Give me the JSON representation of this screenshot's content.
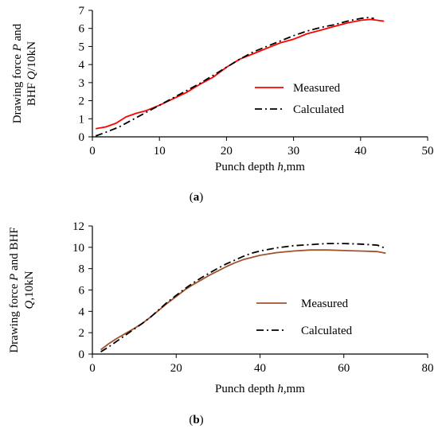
{
  "chart_data": [
    {
      "panel_label": "(a)",
      "type": "line",
      "title": "",
      "xlabel": "Punch depth h,mm",
      "ylabel_line1": "Drawing force P and",
      "ylabel_line2": "BHF Q/10kN",
      "xlim": [
        0,
        50
      ],
      "ylim": [
        0,
        7
      ],
      "xticks": [
        0,
        10,
        20,
        30,
        40,
        50
      ],
      "yticks": [
        0,
        1,
        2,
        3,
        4,
        5,
        6,
        7
      ],
      "grid": false,
      "legend_position": "center-right",
      "series": [
        {
          "name": "Measured",
          "color": "#ff0000",
          "style": "solid",
          "x": [
            0.5,
            2,
            3.5,
            5,
            6.5,
            8,
            10,
            12,
            14,
            16,
            18,
            20,
            22,
            24,
            26,
            28,
            30,
            32,
            34,
            36,
            38,
            40,
            41.5,
            42.5,
            43.5
          ],
          "y": [
            0.45,
            0.55,
            0.75,
            1.1,
            1.3,
            1.45,
            1.75,
            2.1,
            2.45,
            2.9,
            3.3,
            3.85,
            4.3,
            4.6,
            4.9,
            5.2,
            5.4,
            5.7,
            5.9,
            6.1,
            6.3,
            6.45,
            6.5,
            6.45,
            6.4
          ]
        },
        {
          "name": "Calculated",
          "color": "#000000",
          "style": "dashdot",
          "x": [
            0.5,
            2,
            4,
            6,
            8,
            10,
            12,
            14,
            16,
            18,
            20,
            22,
            24,
            26,
            28,
            30,
            32,
            34,
            36,
            38,
            40,
            41,
            42
          ],
          "y": [
            0.05,
            0.25,
            0.55,
            0.95,
            1.35,
            1.75,
            2.15,
            2.55,
            2.95,
            3.4,
            3.85,
            4.3,
            4.7,
            5.0,
            5.3,
            5.6,
            5.85,
            6.05,
            6.2,
            6.4,
            6.55,
            6.6,
            6.55
          ]
        }
      ]
    },
    {
      "panel_label": "(b)",
      "type": "line",
      "title": "",
      "xlabel": "Punch depth h,mm",
      "ylabel_line1": "Drawing force P and BHF",
      "ylabel_line2": "Q,10kN",
      "xlim": [
        0,
        80
      ],
      "ylim": [
        0,
        12
      ],
      "xticks": [
        0,
        20,
        40,
        60,
        80
      ],
      "yticks": [
        0,
        2,
        4,
        6,
        8,
        10,
        12
      ],
      "grid": false,
      "legend_position": "bottom-right",
      "series": [
        {
          "name": "Measured",
          "color": "#a0522d",
          "style": "solid",
          "x": [
            2,
            4,
            6,
            8,
            10,
            12,
            14,
            16,
            18,
            20,
            22,
            24,
            26,
            28,
            30,
            32,
            34,
            36,
            38,
            40,
            44,
            48,
            52,
            56,
            60,
            64,
            68,
            70
          ],
          "y": [
            0.4,
            1.0,
            1.5,
            1.95,
            2.4,
            2.9,
            3.5,
            4.15,
            4.8,
            5.4,
            6.0,
            6.5,
            6.95,
            7.4,
            7.8,
            8.2,
            8.55,
            8.85,
            9.05,
            9.25,
            9.5,
            9.65,
            9.75,
            9.75,
            9.7,
            9.65,
            9.6,
            9.45
          ]
        },
        {
          "name": "Calculated",
          "color": "#000000",
          "style": "dashdot",
          "x": [
            2,
            4,
            6,
            8,
            10,
            12,
            14,
            16,
            18,
            20,
            22,
            24,
            26,
            28,
            30,
            32,
            34,
            36,
            38,
            40,
            44,
            48,
            52,
            56,
            60,
            64,
            68,
            70
          ],
          "y": [
            0.2,
            0.7,
            1.25,
            1.8,
            2.35,
            2.9,
            3.5,
            4.2,
            4.9,
            5.5,
            6.1,
            6.65,
            7.15,
            7.6,
            8.05,
            8.45,
            8.8,
            9.15,
            9.45,
            9.65,
            9.95,
            10.15,
            10.25,
            10.35,
            10.35,
            10.3,
            10.2,
            9.9
          ]
        }
      ]
    }
  ]
}
